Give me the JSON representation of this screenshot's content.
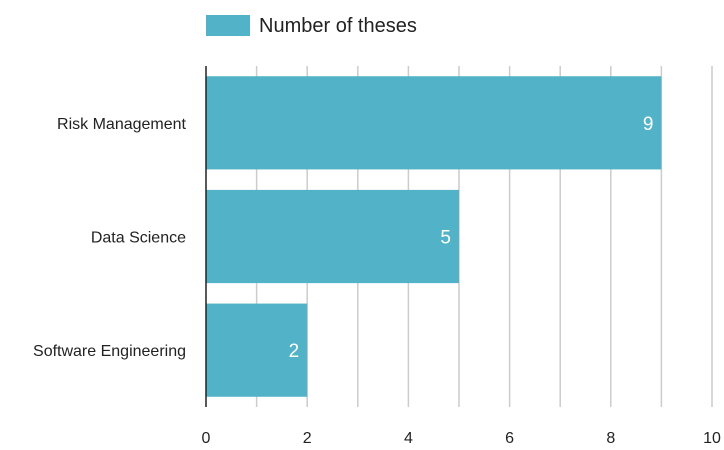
{
  "chart_data": {
    "type": "bar",
    "orientation": "horizontal",
    "categories": [
      "Risk Management",
      "Data Science",
      "Software Engineering"
    ],
    "series": [
      {
        "name": "Number of theses",
        "values": [
          9,
          5,
          2
        ]
      }
    ],
    "data_labels": [
      "9",
      "5",
      "2"
    ],
    "xlim": [
      0,
      10
    ],
    "x_ticks": [
      0,
      2,
      4,
      6,
      8,
      10
    ],
    "x_tick_labels": [
      "0",
      "2",
      "4",
      "6",
      "8",
      "10"
    ],
    "minor_gridlines_step": 1,
    "grid": true,
    "legend_position": "top",
    "title": "",
    "xlabel": "",
    "ylabel": "",
    "colors": {
      "bar": "#52b3c8",
      "grid": "#cccccc",
      "axis": "#222222"
    }
  }
}
